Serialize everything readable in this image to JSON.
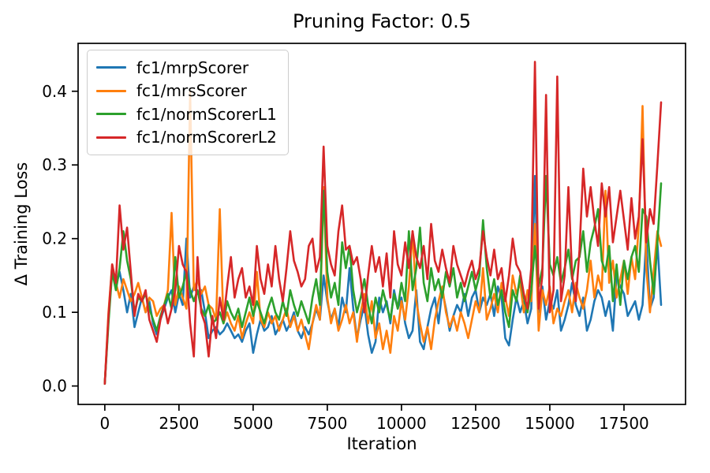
{
  "figure": {
    "title": "Pruning Factor: 0.5",
    "xlabel": "Iteration",
    "ylabel": "Δ Training Loss"
  },
  "chart_data": {
    "type": "line",
    "title": "Pruning Factor: 0.5",
    "xlabel": "Iteration",
    "ylabel": "Δ Training Loss",
    "xlim": [
      -900,
      19575
    ],
    "ylim": [
      -0.025,
      0.465
    ],
    "xticks": [
      0,
      2500,
      5000,
      7500,
      10000,
      12500,
      15000,
      17500
    ],
    "xtick_labels": [
      "0",
      "2500",
      "5000",
      "7500",
      "10000",
      "12500",
      "15000",
      "17500"
    ],
    "yticks": [
      0.0,
      0.1,
      0.2,
      0.3,
      0.4
    ],
    "ytick_labels": [
      "0.0",
      "0.1",
      "0.2",
      "0.3",
      "0.4"
    ],
    "grid": false,
    "legend_position": "upper left",
    "x": {
      "start": 0,
      "step": 125,
      "count": 151
    },
    "series": [
      {
        "name": "fc1/mrpScorer",
        "color": "#1f77b4",
        "values": [
          0.003,
          0.09,
          0.16,
          0.135,
          0.155,
          0.13,
          0.1,
          0.125,
          0.08,
          0.1,
          0.12,
          0.1,
          0.115,
          0.085,
          0.07,
          0.09,
          0.105,
          0.12,
          0.13,
          0.1,
          0.125,
          0.11,
          0.2,
          0.12,
          0.135,
          0.125,
          0.13,
          0.1,
          0.065,
          0.075,
          0.08,
          0.07,
          0.075,
          0.085,
          0.075,
          0.065,
          0.07,
          0.06,
          0.075,
          0.085,
          0.045,
          0.07,
          0.09,
          0.075,
          0.08,
          0.095,
          0.07,
          0.08,
          0.09,
          0.075,
          0.085,
          0.1,
          0.075,
          0.065,
          0.08,
          0.07,
          0.085,
          0.105,
          0.09,
          0.15,
          0.115,
          0.09,
          0.105,
          0.08,
          0.12,
          0.1,
          0.16,
          0.105,
          0.065,
          0.09,
          0.11,
          0.07,
          0.045,
          0.06,
          0.12,
          0.1,
          0.115,
          0.085,
          0.13,
          0.105,
          0.12,
          0.085,
          0.065,
          0.075,
          0.13,
          0.06,
          0.05,
          0.08,
          0.105,
          0.12,
          0.085,
          0.13,
          0.105,
          0.075,
          0.095,
          0.11,
          0.1,
          0.125,
          0.095,
          0.12,
          0.13,
          0.1,
          0.12,
          0.11,
          0.125,
          0.095,
          0.135,
          0.12,
          0.065,
          0.055,
          0.09,
          0.12,
          0.1,
          0.115,
          0.085,
          0.105,
          0.285,
          0.1,
          0.135,
          0.09,
          0.115,
          0.105,
          0.13,
          0.075,
          0.09,
          0.11,
          0.14,
          0.11,
          0.095,
          0.12,
          0.075,
          0.09,
          0.115,
          0.13,
          0.12,
          0.095,
          0.115,
          0.075,
          0.15,
          0.135,
          0.125,
          0.095,
          0.105,
          0.115,
          0.09,
          0.11,
          0.2,
          0.105,
          0.12,
          0.195,
          0.11
        ]
      },
      {
        "name": "fc1/mrsScorer",
        "color": "#ff7f0e",
        "values": [
          0.003,
          0.1,
          0.165,
          0.14,
          0.12,
          0.145,
          0.13,
          0.115,
          0.125,
          0.14,
          0.12,
          0.1,
          0.12,
          0.115,
          0.095,
          0.105,
          0.11,
          0.13,
          0.235,
          0.11,
          0.135,
          0.12,
          0.105,
          0.4,
          0.13,
          0.145,
          0.125,
          0.135,
          0.11,
          0.105,
          0.09,
          0.24,
          0.085,
          0.1,
          0.085,
          0.075,
          0.095,
          0.065,
          0.085,
          0.1,
          0.085,
          0.155,
          0.09,
          0.08,
          0.1,
          0.085,
          0.095,
          0.075,
          0.09,
          0.105,
          0.08,
          0.095,
          0.075,
          0.09,
          0.07,
          0.05,
          0.085,
          0.11,
          0.09,
          0.27,
          0.12,
          0.085,
          0.105,
          0.075,
          0.09,
          0.11,
          0.085,
          0.1,
          0.06,
          0.1,
          0.125,
          0.085,
          0.115,
          0.065,
          0.085,
          0.05,
          0.075,
          0.045,
          0.095,
          0.075,
          0.115,
          0.09,
          0.135,
          0.21,
          0.115,
          0.085,
          0.06,
          0.08,
          0.05,
          0.09,
          0.115,
          0.135,
          0.1,
          0.08,
          0.095,
          0.075,
          0.1,
          0.085,
          0.065,
          0.09,
          0.115,
          0.1,
          0.16,
          0.09,
          0.105,
          0.125,
          0.1,
          0.14,
          0.12,
          0.095,
          0.15,
          0.125,
          0.14,
          0.1,
          0.13,
          0.115,
          0.22,
          0.075,
          0.13,
          0.11,
          0.135,
          0.085,
          0.105,
          0.095,
          0.115,
          0.13,
          0.1,
          0.14,
          0.12,
          0.105,
          0.13,
          0.17,
          0.12,
          0.15,
          0.13,
          0.265,
          0.14,
          0.17,
          0.12,
          0.145,
          0.17,
          0.125,
          0.175,
          0.145,
          0.22,
          0.38,
          0.16,
          0.1,
          0.155,
          0.21,
          0.19
        ]
      },
      {
        "name": "fc1/normScorerL1",
        "color": "#2ca02c",
        "values": [
          0.003,
          0.085,
          0.155,
          0.13,
          0.16,
          0.21,
          0.17,
          0.145,
          0.1,
          0.12,
          0.115,
          0.125,
          0.105,
          0.09,
          0.075,
          0.095,
          0.11,
          0.125,
          0.105,
          0.175,
          0.12,
          0.135,
          0.155,
          0.13,
          0.115,
          0.13,
          0.105,
          0.095,
          0.11,
          0.085,
          0.09,
          0.1,
          0.085,
          0.115,
          0.1,
          0.09,
          0.105,
          0.08,
          0.1,
          0.12,
          0.095,
          0.115,
          0.1,
          0.085,
          0.105,
          0.12,
          0.1,
          0.09,
          0.115,
          0.095,
          0.13,
          0.11,
          0.095,
          0.115,
          0.1,
          0.085,
          0.12,
          0.145,
          0.11,
          0.265,
          0.155,
          0.12,
          0.14,
          0.11,
          0.195,
          0.16,
          0.19,
          0.13,
          0.1,
          0.12,
          0.145,
          0.11,
          0.085,
          0.12,
          0.1,
          0.13,
          0.11,
          0.09,
          0.125,
          0.105,
          0.14,
          0.115,
          0.21,
          0.13,
          0.16,
          0.215,
          0.14,
          0.115,
          0.16,
          0.13,
          0.145,
          0.12,
          0.155,
          0.135,
          0.16,
          0.12,
          0.14,
          0.115,
          0.135,
          0.155,
          0.13,
          0.15,
          0.225,
          0.16,
          0.12,
          0.145,
          0.11,
          0.13,
          0.1,
          0.08,
          0.13,
          0.115,
          0.15,
          0.12,
          0.1,
          0.13,
          0.19,
          0.135,
          0.16,
          0.285,
          0.165,
          0.15,
          0.175,
          0.14,
          0.16,
          0.185,
          0.145,
          0.17,
          0.175,
          0.21,
          0.155,
          0.195,
          0.215,
          0.24,
          0.17,
          0.155,
          0.19,
          0.115,
          0.165,
          0.11,
          0.17,
          0.145,
          0.175,
          0.19,
          0.155,
          0.24,
          0.23,
          0.17,
          0.125,
          0.195,
          0.275
        ]
      },
      {
        "name": "fc1/normScorerL2",
        "color": "#d62728",
        "values": [
          0.003,
          0.095,
          0.165,
          0.14,
          0.245,
          0.185,
          0.215,
          0.155,
          0.095,
          0.125,
          0.115,
          0.13,
          0.09,
          0.075,
          0.06,
          0.09,
          0.11,
          0.085,
          0.105,
          0.13,
          0.19,
          0.165,
          0.155,
          0.085,
          0.04,
          0.175,
          0.1,
          0.085,
          0.04,
          0.095,
          0.065,
          0.12,
          0.09,
          0.135,
          0.175,
          0.12,
          0.145,
          0.16,
          0.12,
          0.135,
          0.11,
          0.19,
          0.145,
          0.125,
          0.165,
          0.135,
          0.19,
          0.145,
          0.115,
          0.16,
          0.21,
          0.17,
          0.155,
          0.135,
          0.145,
          0.19,
          0.2,
          0.155,
          0.175,
          0.325,
          0.19,
          0.165,
          0.15,
          0.21,
          0.245,
          0.185,
          0.19,
          0.165,
          0.175,
          0.145,
          0.1,
          0.15,
          0.19,
          0.155,
          0.175,
          0.135,
          0.18,
          0.12,
          0.21,
          0.165,
          0.15,
          0.195,
          0.16,
          0.21,
          0.175,
          0.16,
          0.19,
          0.145,
          0.22,
          0.17,
          0.155,
          0.185,
          0.16,
          0.14,
          0.19,
          0.165,
          0.15,
          0.135,
          0.155,
          0.17,
          0.145,
          0.16,
          0.21,
          0.175,
          0.15,
          0.185,
          0.145,
          0.16,
          0.115,
          0.15,
          0.2,
          0.165,
          0.155,
          0.125,
          0.105,
          0.16,
          0.44,
          0.105,
          0.15,
          0.395,
          0.1,
          0.13,
          0.42,
          0.115,
          0.15,
          0.27,
          0.15,
          0.115,
          0.185,
          0.295,
          0.23,
          0.27,
          0.225,
          0.19,
          0.275,
          0.23,
          0.27,
          0.195,
          0.23,
          0.265,
          0.225,
          0.185,
          0.255,
          0.2,
          0.23,
          0.335,
          0.195,
          0.24,
          0.22,
          0.3,
          0.385
        ]
      }
    ]
  },
  "style": {
    "spine_color": "#000000",
    "tick_label_color": "#000000",
    "legend_border_color": "#cccccc"
  }
}
